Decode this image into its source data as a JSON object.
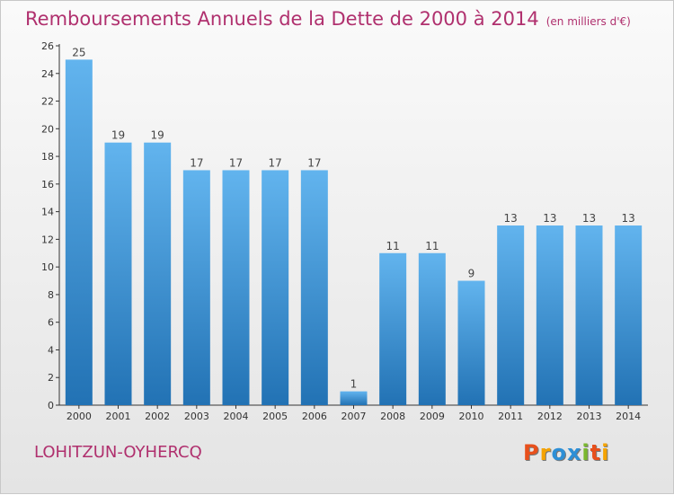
{
  "chart_data": {
    "type": "bar",
    "title": "Remboursements Annuels de la Dette de 2000 à 2014",
    "subtitle": "(en milliers d'€)",
    "categories": [
      "2000",
      "2001",
      "2002",
      "2003",
      "2004",
      "2005",
      "2006",
      "2007",
      "2008",
      "2009",
      "2010",
      "2011",
      "2012",
      "2013",
      "2014"
    ],
    "values": [
      25,
      19,
      19,
      17,
      17,
      17,
      17,
      1,
      11,
      11,
      9,
      13,
      13,
      13,
      13
    ],
    "ylim": [
      0,
      26
    ],
    "yticks": [
      0,
      2,
      4,
      6,
      8,
      10,
      12,
      14,
      16,
      18,
      20,
      22,
      24,
      26
    ],
    "grid": false,
    "legend": "none",
    "bar_color_top": "#62b4ee",
    "bar_color_bottom": "#2272b4"
  },
  "footer": {
    "place": "LOHITZUN-OYHERCQ",
    "logo_text": "Proxiti",
    "logo_colors": [
      "#e8501c",
      "#f5a300",
      "#2d8fd6",
      "#2d8fd6",
      "#7ab82e",
      "#e8501c",
      "#f5a300"
    ]
  },
  "colors": {
    "title": "#b0306e",
    "axis": "#333333"
  }
}
